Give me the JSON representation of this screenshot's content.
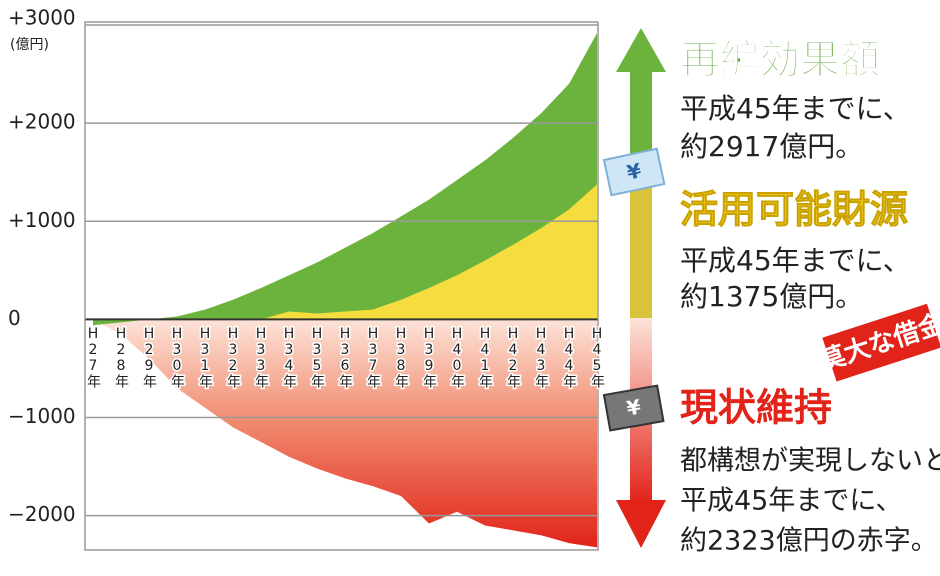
{
  "chart_data": {
    "type": "area",
    "y_unit": "(億円)",
    "categories": [
      "H27年",
      "H28年",
      "H29年",
      "H30年",
      "H31年",
      "H32年",
      "H33年",
      "H34年",
      "H35年",
      "H36年",
      "H37年",
      "H38年",
      "H39年",
      "H40年",
      "H41年",
      "H42年",
      "H43年",
      "H44年",
      "H45年"
    ],
    "series": [
      {
        "name": "再編効果額",
        "color": "#6cb33e",
        "values": [
          -60,
          -30,
          0,
          30,
          100,
          200,
          320,
          450,
          580,
          730,
          880,
          1050,
          1220,
          1420,
          1620,
          1850,
          2100,
          2400,
          2917
        ]
      },
      {
        "name": "活用可能財源",
        "color": "#f6dd3f",
        "values": [
          0,
          0,
          0,
          0,
          0,
          0,
          0,
          80,
          60,
          80,
          100,
          200,
          320,
          450,
          600,
          760,
          930,
          1120,
          1375
        ]
      },
      {
        "name": "現状維持",
        "color": "#e2231a",
        "values": [
          0,
          -150,
          -400,
          -700,
          -900,
          -1100,
          -1250,
          -1400,
          -1520,
          -1620,
          -1700,
          -1800,
          -2080,
          -1960,
          -2100,
          -2150,
          -2200,
          -2280,
          -2323
        ]
      }
    ],
    "ylim": [
      -2350,
      3000
    ],
    "yticks": [
      {
        "value": 3000,
        "label": "+3000"
      },
      {
        "value": 2000,
        "label": "+2000"
      },
      {
        "value": 1000,
        "label": "+1000"
      },
      0,
      {
        "value": -1000,
        "label": "−1000"
      },
      {
        "value": -2000,
        "label": "−2000"
      }
    ],
    "grid": true,
    "annotations": {
      "green_text": [
        "平成45年までに、",
        "約2917億円。"
      ],
      "yellow_text": [
        "平成45年までに、",
        "約1375億円。"
      ],
      "red_text": [
        "都構想が実現しないと",
        "平成45年までに、",
        "約2323億円の赤字。"
      ],
      "badge": "莫大な借金",
      "yen_icon": "¥"
    }
  }
}
